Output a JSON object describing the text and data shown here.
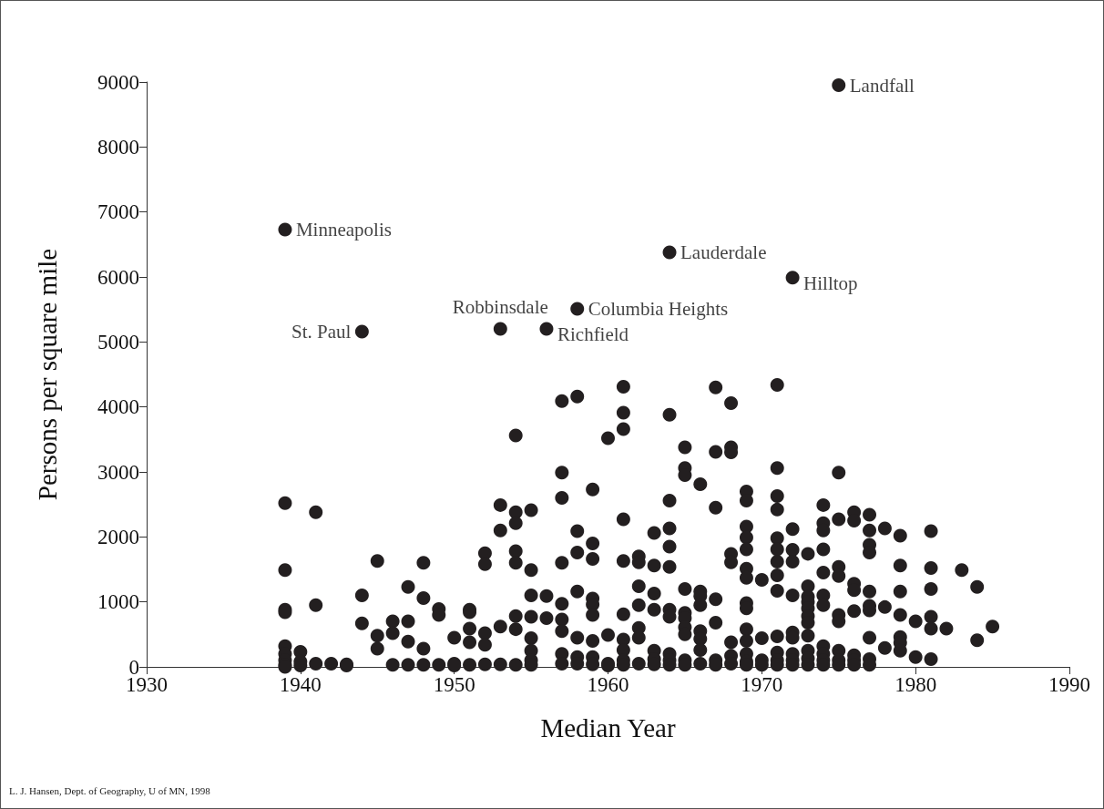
{
  "chart_data": {
    "type": "scatter",
    "xlabel": "Median Year",
    "ylabel": "Persons per square mile",
    "xlim": [
      1930,
      1990
    ],
    "xticks": [
      1930,
      1940,
      1950,
      1960,
      1970,
      1980,
      1990
    ],
    "ylim": [
      0,
      9000
    ],
    "yticks": [
      0,
      1000,
      2000,
      3000,
      4000,
      5000,
      6000,
      7000,
      8000,
      9000
    ],
    "grid": false,
    "marker": "circle",
    "series": [
      {
        "color": "#231f20",
        "x": [
          1939,
          1939,
          1939,
          1939,
          1939,
          1939,
          1939,
          1939,
          1939,
          1939,
          1940,
          1940,
          1940,
          1941,
          1941,
          1941,
          1942,
          1943,
          1943,
          1944,
          1944,
          1944,
          1945,
          1945,
          1945,
          1946,
          1946,
          1946,
          1947,
          1947,
          1947,
          1947,
          1948,
          1948,
          1948,
          1948,
          1949,
          1949,
          1949,
          1950,
          1950,
          1950,
          1951,
          1951,
          1951,
          1951,
          1951,
          1952,
          1952,
          1952,
          1952,
          1952,
          1953,
          1953,
          1953,
          1953,
          1953,
          1954,
          1954,
          1954,
          1954,
          1954,
          1954,
          1954,
          1954,
          1955,
          1955,
          1955,
          1955,
          1955,
          1955,
          1955,
          1955,
          1956,
          1956,
          1956,
          1957,
          1957,
          1957,
          1957,
          1957,
          1957,
          1957,
          1957,
          1957,
          1958,
          1958,
          1958,
          1958,
          1958,
          1958,
          1958,
          1958,
          1959,
          1959,
          1959,
          1959,
          1959,
          1959,
          1959,
          1959,
          1959,
          1960,
          1960,
          1960,
          1960,
          1961,
          1961,
          1961,
          1961,
          1961,
          1961,
          1961,
          1961,
          1961,
          1961,
          1962,
          1962,
          1962,
          1962,
          1962,
          1962,
          1962,
          1963,
          1963,
          1963,
          1963,
          1963,
          1963,
          1963,
          1964,
          1964,
          1964,
          1964,
          1964,
          1964,
          1964,
          1964,
          1964,
          1964,
          1964,
          1965,
          1965,
          1965,
          1965,
          1965,
          1965,
          1965,
          1965,
          1965,
          1965,
          1966,
          1966,
          1966,
          1966,
          1966,
          1966,
          1966,
          1966,
          1967,
          1967,
          1967,
          1967,
          1967,
          1967,
          1967,
          1968,
          1968,
          1968,
          1968,
          1968,
          1968,
          1968,
          1968,
          1969,
          1969,
          1969,
          1969,
          1969,
          1969,
          1969,
          1969,
          1969,
          1969,
          1969,
          1969,
          1969,
          1969,
          1970,
          1970,
          1970,
          1970,
          1971,
          1971,
          1971,
          1971,
          1971,
          1971,
          1971,
          1971,
          1971,
          1971,
          1971,
          1971,
          1971,
          1972,
          1972,
          1972,
          1972,
          1972,
          1972,
          1972,
          1972,
          1972,
          1972,
          1973,
          1973,
          1973,
          1973,
          1973,
          1973,
          1973,
          1973,
          1973,
          1973,
          1973,
          1974,
          1974,
          1974,
          1974,
          1974,
          1974,
          1974,
          1974,
          1974,
          1974,
          1974,
          1975,
          1975,
          1975,
          1975,
          1975,
          1975,
          1975,
          1975,
          1975,
          1975,
          1976,
          1976,
          1976,
          1976,
          1976,
          1976,
          1976,
          1976,
          1977,
          1977,
          1977,
          1977,
          1977,
          1977,
          1977,
          1977,
          1977,
          1977,
          1978,
          1978,
          1978,
          1979,
          1979,
          1979,
          1979,
          1979,
          1979,
          1979,
          1980,
          1980,
          1981,
          1981,
          1981,
          1981,
          1981,
          1981,
          1982,
          1983,
          1984,
          1984,
          1985
        ],
        "values": [
          6730,
          2520,
          1490,
          880,
          840,
          320,
          200,
          100,
          30,
          0,
          230,
          80,
          20,
          2380,
          950,
          50,
          50,
          40,
          20,
          5160,
          1100,
          670,
          1630,
          480,
          280,
          700,
          520,
          30,
          1230,
          700,
          390,
          30,
          1600,
          1060,
          280,
          30,
          890,
          800,
          30,
          450,
          50,
          20,
          880,
          840,
          590,
          380,
          30,
          1750,
          1580,
          520,
          340,
          40,
          5200,
          2490,
          2100,
          620,
          40,
          3560,
          2380,
          2210,
          1780,
          1600,
          780,
          580,
          30,
          2410,
          1490,
          1100,
          770,
          440,
          250,
          100,
          30,
          5200,
          1090,
          750,
          4090,
          2990,
          2600,
          1600,
          970,
          730,
          550,
          200,
          50,
          5510,
          4160,
          2090,
          1760,
          1160,
          450,
          150,
          50,
          2730,
          1900,
          1660,
          1050,
          960,
          800,
          400,
          150,
          40,
          3520,
          490,
          50,
          20,
          4310,
          3910,
          3660,
          2270,
          1630,
          810,
          420,
          260,
          100,
          30,
          1700,
          1610,
          1240,
          950,
          600,
          450,
          50,
          2060,
          1560,
          1130,
          880,
          250,
          120,
          40,
          6380,
          3880,
          2560,
          2130,
          1850,
          1540,
          880,
          770,
          200,
          100,
          30,
          3380,
          3060,
          2950,
          1200,
          830,
          750,
          610,
          500,
          100,
          30,
          2810,
          1160,
          1090,
          950,
          550,
          430,
          260,
          50,
          4300,
          3310,
          2450,
          1040,
          680,
          100,
          30,
          4060,
          3380,
          3300,
          1740,
          1610,
          380,
          170,
          50,
          2700,
          2560,
          2160,
          1990,
          1810,
          1510,
          1370,
          980,
          900,
          580,
          400,
          200,
          80,
          30,
          1340,
          440,
          100,
          30,
          4340,
          3060,
          2630,
          2420,
          1980,
          1810,
          1620,
          1410,
          1170,
          470,
          220,
          100,
          30,
          5990,
          2120,
          1800,
          1620,
          1100,
          530,
          450,
          200,
          100,
          30,
          1740,
          1240,
          1080,
          1000,
          900,
          780,
          680,
          480,
          250,
          130,
          30,
          2490,
          2210,
          2100,
          1810,
          1450,
          1100,
          950,
          320,
          200,
          100,
          30,
          8950,
          2990,
          2270,
          1540,
          1400,
          800,
          700,
          250,
          100,
          30,
          2380,
          2250,
          1280,
          1180,
          860,
          180,
          100,
          30,
          2340,
          2100,
          1880,
          1760,
          1160,
          940,
          870,
          450,
          120,
          30,
          2130,
          920,
          290,
          2020,
          1560,
          1160,
          800,
          460,
          370,
          250,
          700,
          150,
          2090,
          1520,
          1200,
          770,
          590,
          120,
          590,
          1490,
          1230,
          410,
          620
        ]
      }
    ],
    "annotations": [
      {
        "text": "Landfall",
        "x": 1975,
        "y": 8950
      },
      {
        "text": "Minneapolis",
        "x": 1939,
        "y": 6730
      },
      {
        "text": "Lauderdale",
        "x": 1964,
        "y": 6380
      },
      {
        "text": "Hilltop",
        "x": 1972,
        "y": 5990
      },
      {
        "text": "Columbia Heights",
        "x": 1958,
        "y": 5510
      },
      {
        "text": "Robbinsdale",
        "x": 1953,
        "y": 5200
      },
      {
        "text": "St. Paul",
        "x": 1944,
        "y": 5160
      },
      {
        "text": "Richfield",
        "x": 1956,
        "y": 5200
      },
      "L. J. Hansen, Dept. of Geography, U of MN, 1998"
    ]
  }
}
